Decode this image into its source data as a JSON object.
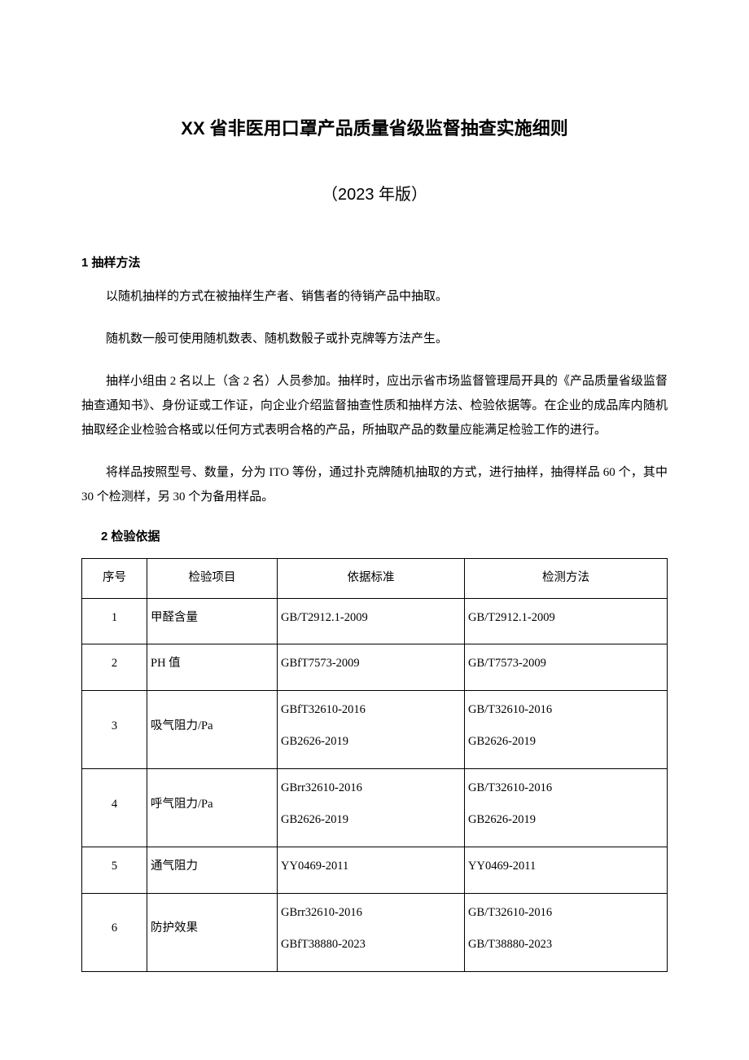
{
  "title": "XX 省非医用口罩产品质量省级监督抽查实施细则",
  "subtitle": "（2023 年版）",
  "section1": {
    "heading": "1 抽样方法",
    "p1": "以随机抽样的方式在被抽样生产者、销售者的待销产品中抽取。",
    "p2": "随机数一般可使用随机数表、随机数骰子或扑克牌等方法产生。",
    "p3": "抽样小组由 2 名以上（含 2 名）人员参加。抽样时，应出示省市场监督管理局开具的《产品质量省级监督抽查通知书》、身份证或工作证，向企业介绍监督抽查性质和抽样方法、检验依据等。在企业的成品库内随机抽取经企业检验合格或以任何方式表明合格的产品，所抽取产品的数量应能满足检验工作的进行。",
    "p4": "将样品按照型号、数量，分为 ITO 等份，通过扑克牌随机抽取的方式，进行抽样，抽得样品 60 个，其中 30 个检测样，另 30 个为备用样品。"
  },
  "section2": {
    "heading": "2 检验依据"
  },
  "table": {
    "headers": {
      "seq": "序号",
      "item": "检验项目",
      "standard": "依据标准",
      "method": "检测方法"
    },
    "rows": [
      {
        "seq": "1",
        "item": "甲醛含量",
        "standard": [
          "GB/T2912.1-2009"
        ],
        "method": [
          "GB/T2912.1-2009"
        ]
      },
      {
        "seq": "2",
        "item": "PH 值",
        "standard": [
          "GBfT7573-2009"
        ],
        "method": [
          "GB/T7573-2009"
        ]
      },
      {
        "seq": "3",
        "item": "吸气阻力/Pa",
        "standard": [
          "GBfT32610-2016",
          "GB2626-2019"
        ],
        "method": [
          "GB/T32610-2016",
          "GB2626-2019"
        ]
      },
      {
        "seq": "4",
        "item": "呼气阻力/Pa",
        "standard": [
          "GBrr32610-2016",
          "GB2626-2019"
        ],
        "method": [
          "GB/T32610-2016",
          "GB2626-2019"
        ]
      },
      {
        "seq": "5",
        "item": "通气阻力",
        "standard": [
          "YY0469-2011"
        ],
        "method": [
          "YY0469-2011"
        ]
      },
      {
        "seq": "6",
        "item": "防护效果",
        "standard": [
          "GBrr32610-2016",
          "GBfT38880-2023"
        ],
        "method": [
          "GB/T32610-2016",
          "GB/T38880-2023"
        ]
      }
    ]
  }
}
